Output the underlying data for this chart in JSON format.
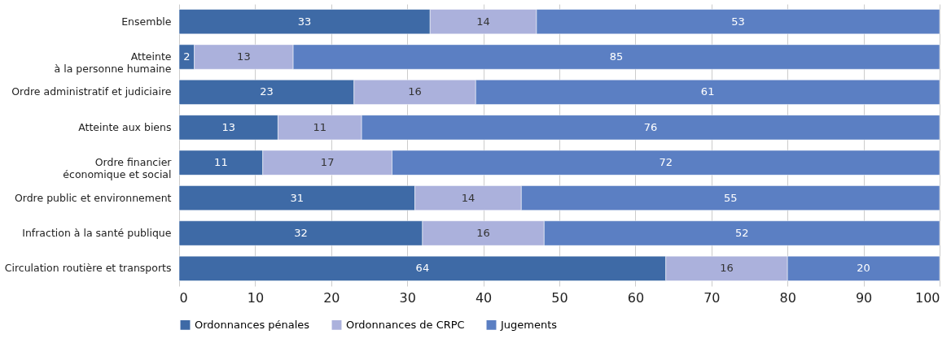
{
  "chart_data": {
    "type": "bar",
    "orientation": "horizontal",
    "stacked": true,
    "data_labels": true,
    "grid": "x",
    "legend": "bottom left",
    "categories": [
      "Ensemble",
      "Atteinte\nà la personne humaine",
      "Ordre administratif et judiciaire",
      "Atteinte aux biens",
      "Ordre financier\néconomique et social",
      "Ordre public et environnement",
      "Infraction à la santé publique",
      "Circulation routière et transports"
    ],
    "series": [
      {
        "name": "Ordonnances pénales",
        "color": "#3e6aa6",
        "values": [
          33,
          2,
          23,
          13,
          11,
          31,
          32,
          64
        ]
      },
      {
        "name": "Ordonnances de CRPC",
        "color": "#abb1dc",
        "values": [
          14,
          13,
          16,
          11,
          17,
          14,
          16,
          16
        ]
      },
      {
        "name": "Jugements",
        "color": "#5b7fc3",
        "values": [
          53,
          85,
          61,
          76,
          72,
          55,
          52,
          20
        ]
      }
    ],
    "xlim": [
      0,
      100
    ],
    "xticks": [
      0,
      10,
      20,
      30,
      40,
      50,
      60,
      70,
      80,
      90,
      100
    ]
  }
}
